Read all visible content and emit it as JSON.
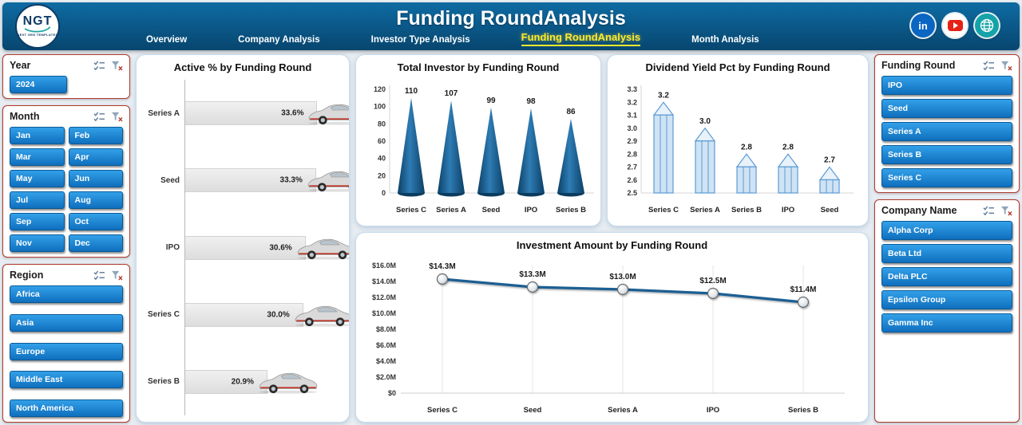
{
  "header": {
    "title": "Funding RoundAnalysis",
    "logo": {
      "text": "NGT",
      "subtext": "NEXT GEN TEMPLATES"
    },
    "nav": [
      {
        "label": "Overview",
        "active": false
      },
      {
        "label": "Company Analysis",
        "active": false
      },
      {
        "label": "Investor Type Analysis",
        "active": false
      },
      {
        "label": "Funding RoundAnalysis",
        "active": true
      },
      {
        "label": "Month Analysis",
        "active": false
      }
    ],
    "social_icons": [
      "linkedin-icon",
      "youtube-icon",
      "globe-icon"
    ]
  },
  "slicers": {
    "year": {
      "title": "Year",
      "items": [
        "2024"
      ]
    },
    "month": {
      "title": "Month",
      "items": [
        "Jan",
        "Feb",
        "Mar",
        "Apr",
        "May",
        "Jun",
        "Jul",
        "Aug",
        "Sep",
        "Oct",
        "Nov",
        "Dec"
      ]
    },
    "region": {
      "title": "Region",
      "items": [
        "Africa",
        "Asia",
        "Europe",
        "Middle East",
        "North America"
      ]
    },
    "funding_round": {
      "title": "Funding Round",
      "items": [
        "IPO",
        "Seed",
        "Series A",
        "Series B",
        "Series C"
      ]
    },
    "company_name": {
      "title": "Company Name",
      "items": [
        "Alpha Corp",
        "Beta Ltd",
        "Delta PLC",
        "Epsilon Group",
        "Gamma Inc"
      ]
    }
  },
  "chart_data": [
    {
      "type": "bar",
      "orientation": "horizontal",
      "title": "Active % by Funding Round",
      "categories": [
        "Series A",
        "Seed",
        "IPO",
        "Series C",
        "Series B"
      ],
      "values": [
        33.6,
        33.3,
        30.6,
        30.0,
        20.9
      ],
      "labels": [
        "33.6%",
        "33.3%",
        "30.6%",
        "30.0%",
        "20.9%"
      ],
      "xlim": [
        0,
        40
      ],
      "marker": "car-icon"
    },
    {
      "type": "bar",
      "shape": "cone",
      "title": "Total Investor by Funding Round",
      "categories": [
        "Series C",
        "Series A",
        "Seed",
        "IPO",
        "Series B"
      ],
      "values": [
        110,
        107,
        99,
        98,
        86
      ],
      "ylim": [
        0,
        120
      ],
      "yticks": [
        0,
        20,
        40,
        60,
        80,
        100,
        120
      ],
      "grid": false
    },
    {
      "type": "bar",
      "shape": "pencil",
      "title": "Dividend Yield Pct by Funding Round",
      "categories": [
        "Series C",
        "Series A",
        "Series B",
        "IPO",
        "Seed"
      ],
      "values": [
        3.2,
        3.0,
        2.8,
        2.8,
        2.7
      ],
      "labels": [
        "3.2",
        "3.0",
        "2.8",
        "2.8",
        "2.7"
      ],
      "ylim": [
        2.5,
        3.3
      ],
      "yticks": [
        "2.5",
        "2.6",
        "2.7",
        "2.8",
        "2.9",
        "3.0",
        "3.1",
        "3.2",
        "3.3"
      ],
      "grid": false
    },
    {
      "type": "line",
      "title": "Investment Amount by Funding Round",
      "categories": [
        "Series C",
        "Seed",
        "Series A",
        "IPO",
        "Series B"
      ],
      "values": [
        14.3,
        13.3,
        13.0,
        12.5,
        11.4
      ],
      "labels": [
        "$14.3M",
        "$13.3M",
        "$13.0M",
        "$12.5M",
        "$11.4M"
      ],
      "ylim": [
        0,
        16
      ],
      "yticks": [
        "$0",
        "$2.0M",
        "$4.0M",
        "$6.0M",
        "$8.0M",
        "$10.0M",
        "$12.0M",
        "$14.0M",
        "$16.0M"
      ],
      "grid": "vertical"
    }
  ],
  "colors": {
    "header_bg": "#0a5a8c",
    "active_tab": "#ffe92b",
    "button_blue": "#1b86d8",
    "slicer_border": "#b03a2e",
    "cone_fill": "#1a5f96",
    "pencil_fill": "#cfe3f4",
    "pencil_stroke": "#5b9bd5",
    "line_color": "#1d5f93"
  }
}
